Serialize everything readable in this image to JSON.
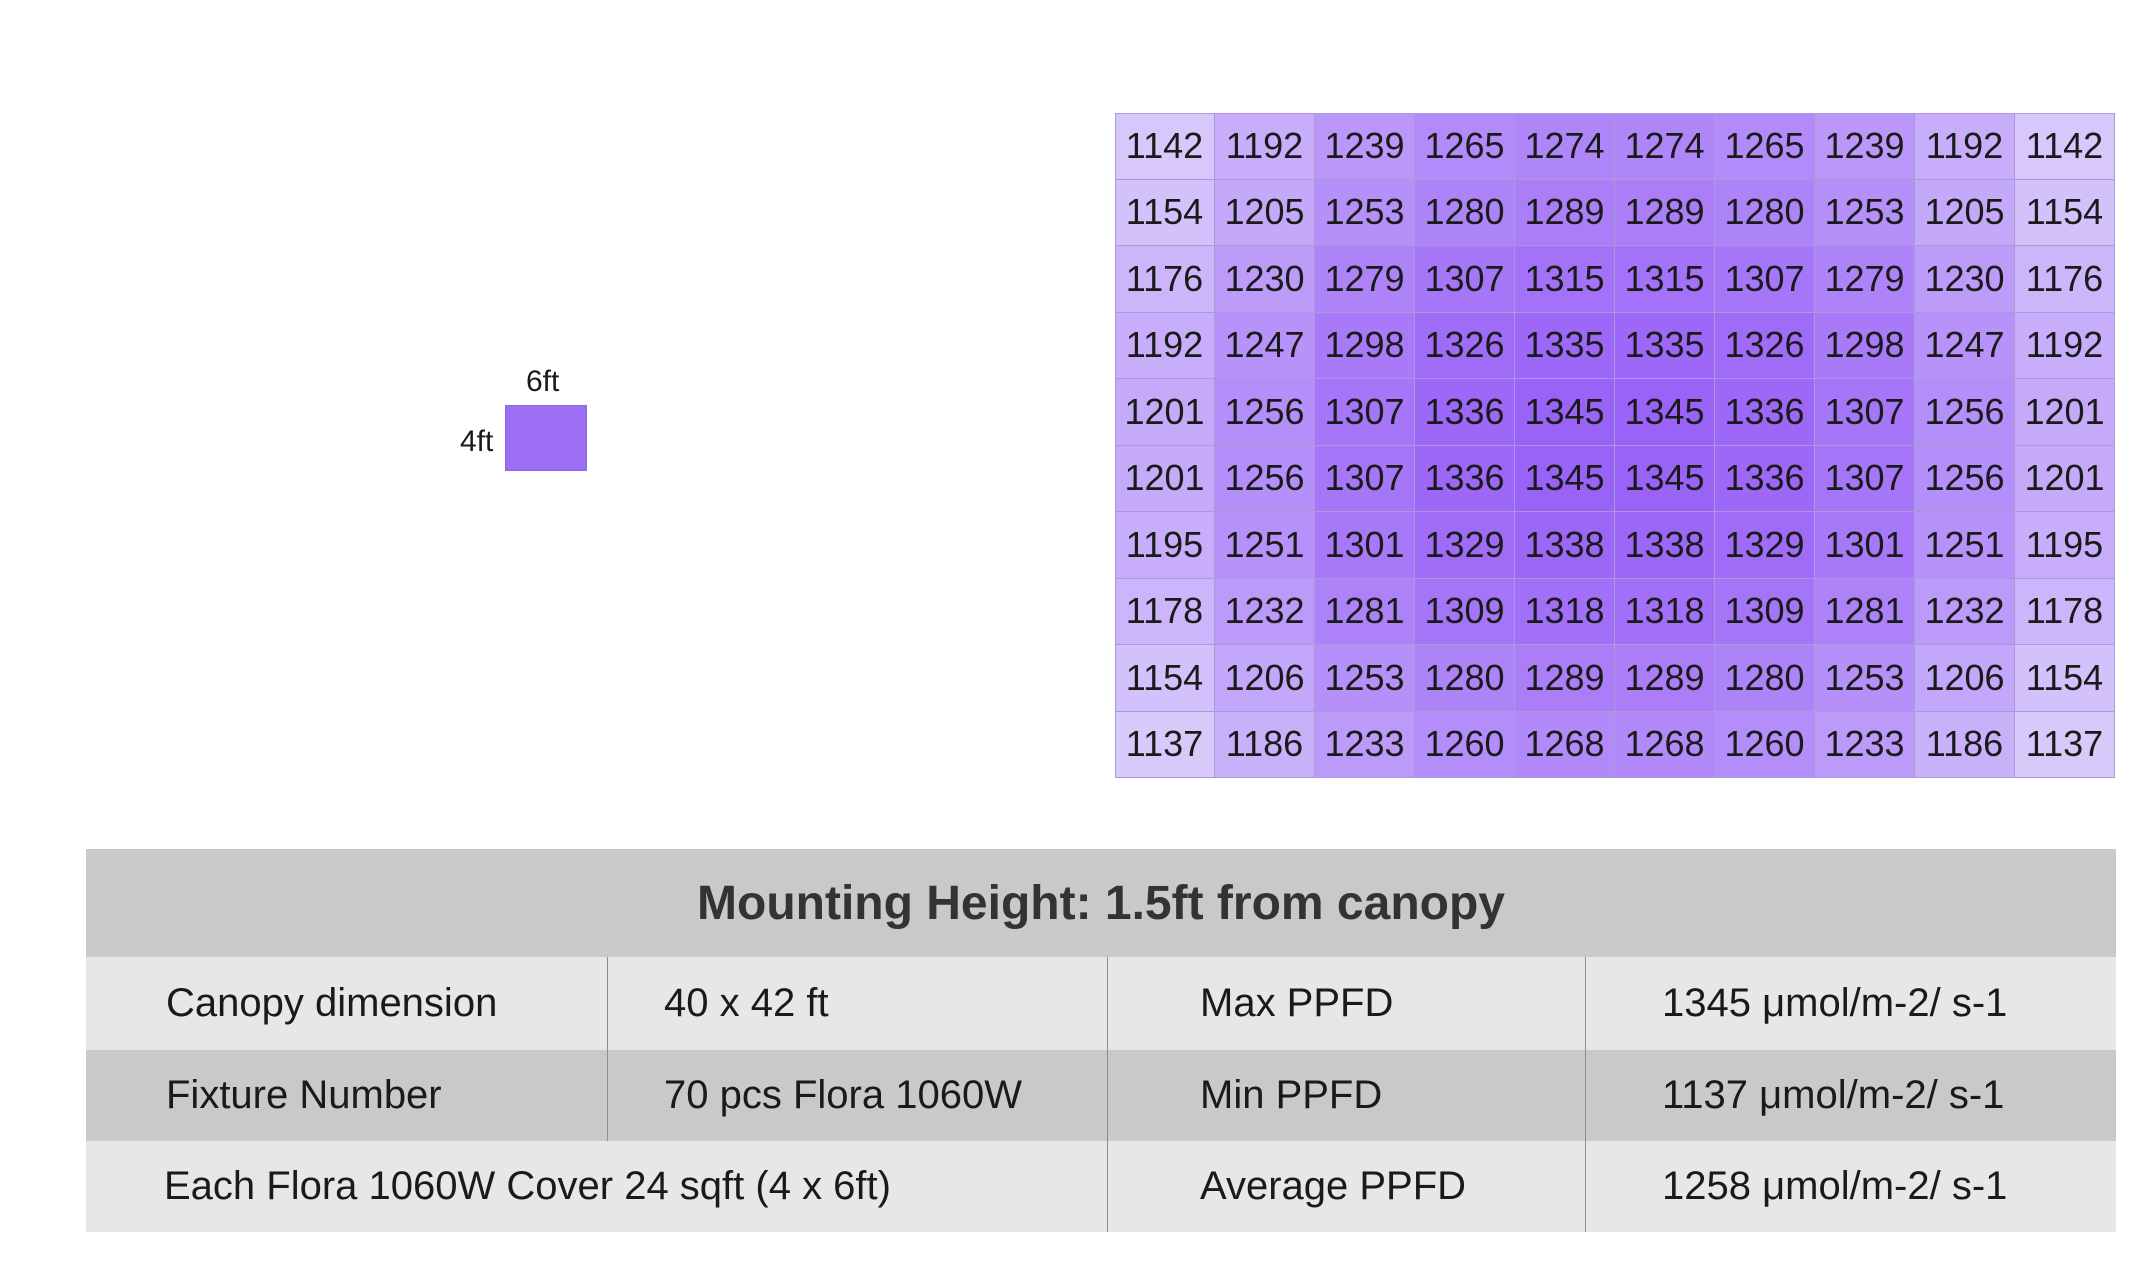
{
  "fixture": {
    "width_label": "6ft",
    "height_label": "4ft",
    "color": "#9b6ef5"
  },
  "chart_data": {
    "type": "heatmap",
    "rows": [
      [
        1142,
        1192,
        1239,
        1265,
        1274,
        1274,
        1265,
        1239,
        1192,
        1142
      ],
      [
        1154,
        1205,
        1253,
        1280,
        1289,
        1289,
        1280,
        1253,
        1205,
        1154
      ],
      [
        1176,
        1230,
        1279,
        1307,
        1315,
        1315,
        1307,
        1279,
        1230,
        1176
      ],
      [
        1192,
        1247,
        1298,
        1326,
        1335,
        1335,
        1326,
        1298,
        1247,
        1192
      ],
      [
        1201,
        1256,
        1307,
        1336,
        1345,
        1345,
        1336,
        1307,
        1256,
        1201
      ],
      [
        1201,
        1256,
        1307,
        1336,
        1345,
        1345,
        1336,
        1307,
        1256,
        1201
      ],
      [
        1195,
        1251,
        1301,
        1329,
        1338,
        1338,
        1329,
        1301,
        1251,
        1195
      ],
      [
        1178,
        1232,
        1281,
        1309,
        1318,
        1318,
        1309,
        1281,
        1232,
        1178
      ],
      [
        1154,
        1206,
        1253,
        1280,
        1289,
        1289,
        1280,
        1253,
        1206,
        1154
      ],
      [
        1137,
        1186,
        1233,
        1260,
        1268,
        1268,
        1260,
        1233,
        1186,
        1137
      ]
    ],
    "colors": {
      "low": "#d8c9fb",
      "high": "#9a63f7"
    }
  },
  "summary": {
    "title": "Mounting Height: 1.5ft from canopy",
    "canopy_label": "Canopy dimension",
    "canopy_value": "40 x 42 ft",
    "fixture_label": "Fixture Number",
    "fixture_value": "70 pcs Flora 1060W",
    "cover_text": "Each Flora 1060W Cover 24 sqft (4 x 6ft)",
    "max_label": "Max PPFD",
    "max_value": "1345 μmol/m-2/ s-1",
    "min_label": "Min PPFD",
    "min_value": "1137 μmol/m-2/ s-1",
    "avg_label": "Average PPFD",
    "avg_value": "1258 μmol/m-2/ s-1"
  }
}
